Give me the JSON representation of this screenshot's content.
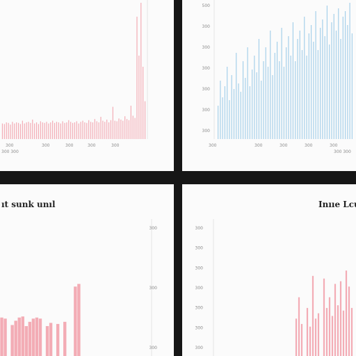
{
  "chart_data": [
    {
      "type": "bar",
      "panel": "top-left",
      "color": "#f2a3ad",
      "title": "",
      "xlabel": "",
      "ylabel": "",
      "x_ticks": [
        "300",
        "300",
        "300",
        "300",
        "300"
      ],
      "caption": "300 300",
      "ylim": [
        0,
        250
      ],
      "values": [
        28,
        27,
        30,
        29,
        26,
        31,
        28,
        30,
        29,
        27,
        33,
        28,
        30,
        31,
        29,
        35,
        28,
        30,
        27,
        32,
        30,
        29,
        31,
        28,
        30,
        33,
        29,
        31,
        30,
        28,
        32,
        29,
        30,
        34,
        31,
        29,
        30,
        32,
        28,
        31,
        33,
        30,
        29,
        34,
        31,
        30,
        36,
        32,
        30,
        40,
        33,
        31,
        35,
        30,
        34,
        58,
        33,
        32,
        37,
        35,
        33,
        41,
        36,
        34,
        60,
        42,
        38,
        220,
        150,
        245,
        130,
        68
      ]
    },
    {
      "type": "bar",
      "panel": "top-right",
      "color": "#9ccbe8",
      "title": "",
      "xlabel": "",
      "ylabel": "",
      "y_ticks": [
        "500",
        "300",
        "300",
        "300",
        "300",
        "300",
        "300"
      ],
      "x_ticks": [
        "300",
        "300",
        "300",
        "300",
        "300"
      ],
      "caption": "300 300",
      "ylim": [
        0,
        500
      ],
      "values": [
        120,
        210,
        150,
        190,
        260,
        140,
        230,
        180,
        310,
        200,
        170,
        280,
        220,
        330,
        190,
        250,
        300,
        240,
        360,
        210,
        280,
        330,
        260,
        390,
        230,
        310,
        350,
        280,
        400,
        260,
        330,
        370,
        300,
        420,
        280,
        360,
        390,
        320,
        440,
        300,
        380,
        410,
        350,
        460,
        320,
        400,
        430,
        370,
        480,
        340,
        420,
        450,
        390,
        470,
        360,
        440,
        460,
        410,
        490,
        380
      ]
    },
    {
      "type": "bar",
      "panel": "bottom-left",
      "color": "#f2a3ad",
      "title": "ıt sunk unıl",
      "xlabel": "",
      "ylabel": "",
      "y_ticks": [
        "300",
        "300",
        "300"
      ],
      "ylim": [
        0,
        250
      ],
      "values": [
        72,
        70,
        0,
        58,
        66,
        72,
        74,
        56,
        64,
        70,
        72,
        70,
        0,
        56,
        62,
        0,
        60,
        0,
        64,
        0,
        0,
        130,
        135,
        0,
        0
      ]
    },
    {
      "type": "bar",
      "panel": "bottom-right",
      "color": "#f2a3ad",
      "title": "Inııe Lcum",
      "xlabel": "",
      "ylabel": "",
      "y_ticks": [
        "300",
        "300",
        "300",
        "300",
        "300",
        "300",
        "300"
      ],
      "ylim": [
        0,
        250
      ],
      "values": [
        0,
        0,
        0,
        0,
        0,
        0,
        0,
        0,
        0,
        0,
        0,
        0,
        0,
        0,
        0,
        0,
        0,
        0,
        0,
        0,
        0,
        0,
        0,
        0,
        0,
        0,
        0,
        0,
        70,
        110,
        60,
        0,
        90,
        55,
        150,
        70,
        80,
        0,
        145,
        90,
        110,
        75,
        135,
        95,
        140,
        85,
        160,
        130,
        90,
        0
      ]
    }
  ]
}
